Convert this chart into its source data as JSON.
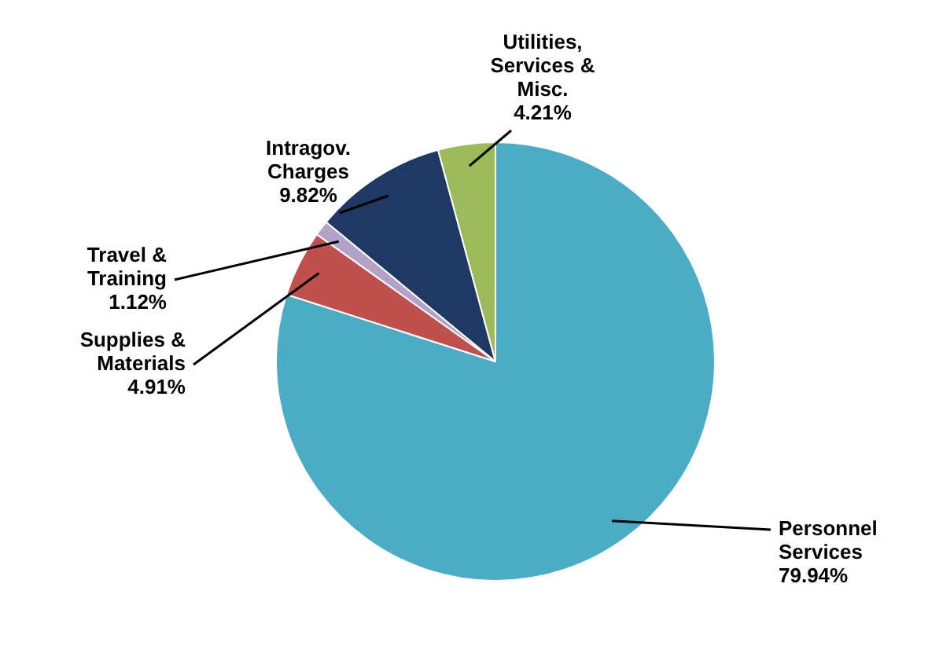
{
  "chart_data": {
    "type": "pie",
    "categories": [
      "Personnel Services",
      "Supplies & Materials",
      "Travel & Training",
      "Intragov. Charges",
      "Utilities, Services & Misc."
    ],
    "values": [
      79.94,
      4.91,
      1.12,
      9.82,
      4.21
    ],
    "colors": [
      "#4bacc6",
      "#c0504d",
      "#b3a2c7",
      "#1f3864",
      "#9bbb59"
    ],
    "value_labels": [
      "79.94%",
      "4.91%",
      "1.12%",
      "9.82%",
      "4.21%"
    ]
  }
}
